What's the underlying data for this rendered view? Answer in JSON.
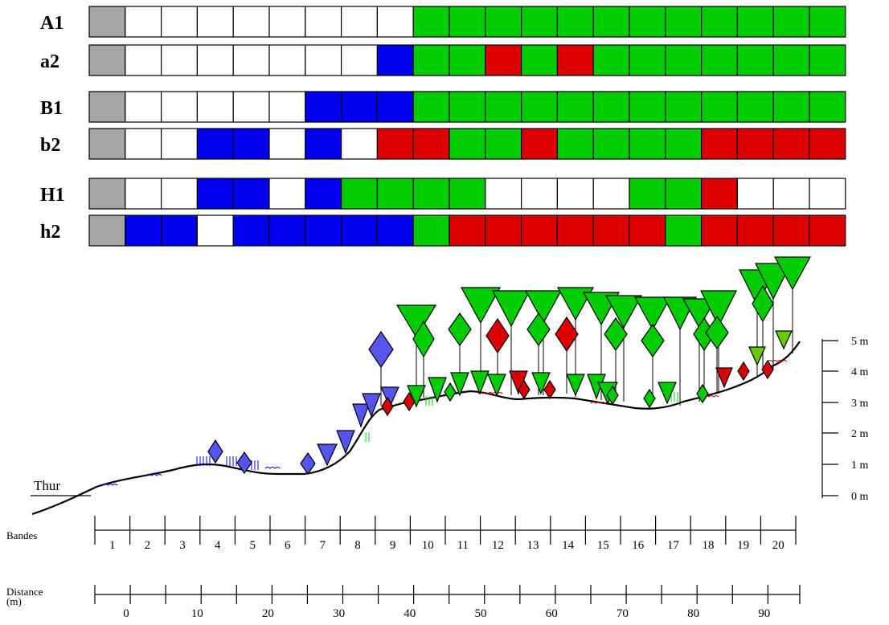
{
  "colors": {
    "gray": "#a6a6a6",
    "white": "#ffffff",
    "blue": "#0000ee",
    "green": "#00cc00",
    "red": "#dd0000",
    "light_green": "#66cc00",
    "symbol_blue": "#5555ee"
  },
  "rows": [
    {
      "label": "A1",
      "cells": [
        "G",
        "W",
        "W",
        "W",
        "W",
        "W",
        "W",
        "W",
        "W",
        "Gr",
        "Gr",
        "Gr",
        "Gr",
        "Gr",
        "Gr",
        "Gr",
        "Gr",
        "Gr",
        "Gr",
        "Gr",
        "Gr"
      ]
    },
    {
      "label": "a2",
      "cells": [
        "G",
        "W",
        "W",
        "W",
        "W",
        "W",
        "W",
        "W",
        "B",
        "Gr",
        "Gr",
        "R",
        "Gr",
        "R",
        "Gr",
        "Gr",
        "Gr",
        "Gr",
        "Gr",
        "Gr",
        "Gr"
      ]
    },
    {
      "label": "B1",
      "cells": [
        "G",
        "W",
        "W",
        "W",
        "W",
        "W",
        "B",
        "B",
        "B",
        "Gr",
        "Gr",
        "Gr",
        "Gr",
        "Gr",
        "Gr",
        "Gr",
        "Gr",
        "Gr",
        "Gr",
        "Gr",
        "Gr"
      ]
    },
    {
      "label": "b2",
      "cells": [
        "G",
        "W",
        "W",
        "B",
        "B",
        "W",
        "B",
        "W",
        "R",
        "R",
        "Gr",
        "Gr",
        "R",
        "Gr",
        "Gr",
        "Gr",
        "Gr",
        "R",
        "R",
        "R",
        "R"
      ]
    },
    {
      "label": "H1",
      "cells": [
        "G",
        "W",
        "W",
        "B",
        "B",
        "W",
        "B",
        "Gr",
        "Gr",
        "Gr",
        "Gr",
        "W",
        "W",
        "W",
        "W",
        "Gr",
        "Gr",
        "R",
        "W",
        "W",
        "W"
      ]
    },
    {
      "label": "h2",
      "cells": [
        "G",
        "B",
        "B",
        "W",
        "B",
        "B",
        "B",
        "B",
        "B",
        "Gr",
        "R",
        "R",
        "R",
        "R",
        "R",
        "R",
        "Gr",
        "R",
        "R",
        "R",
        "R"
      ]
    }
  ],
  "thur_label": "Thur",
  "height_scale": {
    "labels": [
      "5 m",
      "4 m",
      "3 m",
      "2 m",
      "1 m",
      "0 m"
    ]
  },
  "bandes": {
    "label": "Bandes",
    "values": [
      "1",
      "2",
      "3",
      "4",
      "5",
      "6",
      "7",
      "8",
      "9",
      "10",
      "11",
      "12",
      "13",
      "14",
      "15",
      "16",
      "17",
      "18",
      "19",
      "20"
    ]
  },
  "distance": {
    "label_line1": "Distance",
    "label_line2": "(m)",
    "values": [
      "0",
      "10",
      "20",
      "30",
      "40",
      "50",
      "60",
      "70",
      "80",
      "90"
    ]
  },
  "symbols": [
    {
      "type": "diamond",
      "color": "blue",
      "band": 4
    },
    {
      "type": "diamond",
      "color": "blue",
      "band": 5
    },
    {
      "type": "diamond",
      "color": "blue",
      "band": 7
    },
    {
      "type": "diamond",
      "color": "blue",
      "band": 9
    },
    {
      "type": "triangle",
      "color": "blue",
      "band": 7
    },
    {
      "type": "triangle",
      "color": "blue",
      "band": 8
    },
    {
      "type": "triangle",
      "color": "blue",
      "band": 9
    },
    {
      "type": "diamond",
      "color": "red",
      "band": 9
    },
    {
      "type": "diamond",
      "color": "red",
      "band": 12
    },
    {
      "type": "diamond",
      "color": "red",
      "band": 14
    },
    {
      "type": "diamond",
      "color": "red",
      "band": 19
    },
    {
      "type": "triangle",
      "color": "red",
      "band": 18
    }
  ]
}
